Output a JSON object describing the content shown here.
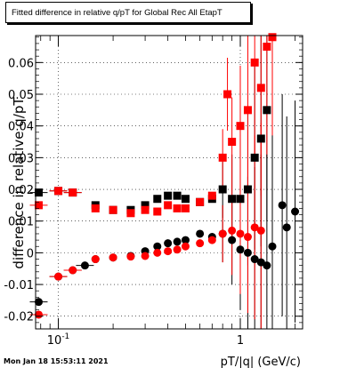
{
  "title": "Fitted difference in relative q/pT for Global Rec All EtapT",
  "date": "Mon Jan 18 15:53:11 2021",
  "chart_data": {
    "type": "scatter",
    "title": "Fitted difference in relative q/pT for Global Rec All EtapT",
    "xlabel": "pT/|q| (GeV/c)",
    "ylabel": "difference in relative q/pT",
    "xscale": "log",
    "xlim": [
      0.075,
      2.2
    ],
    "ylim": [
      -0.024,
      0.0685
    ],
    "xticks": [
      {
        "value": 0.1,
        "label": "10^-1"
      },
      {
        "value": 1,
        "label": "1"
      }
    ],
    "yticks": [
      -0.02,
      -0.01,
      0,
      0.01,
      0.02,
      0.03,
      0.04,
      0.05,
      0.06
    ],
    "ytick_labels": [
      "-0.02",
      "-0.01",
      "0",
      "0.01",
      "0.02",
      "0.03",
      "0.04",
      "0.05",
      "0.06"
    ],
    "grid": true,
    "series": [
      {
        "color": "#000000",
        "marker": "square",
        "x": [
          0.078,
          0.1,
          0.12,
          0.16,
          0.2,
          0.25,
          0.3,
          0.35,
          0.4,
          0.45,
          0.5,
          0.6,
          0.7,
          0.8,
          0.9,
          1.0,
          1.1,
          1.2,
          1.3,
          1.4
        ],
        "y": [
          0.019,
          0.0195,
          0.019,
          0.015,
          0.0135,
          0.0135,
          0.015,
          0.017,
          0.018,
          0.018,
          0.017,
          0.016,
          0.017,
          0.02,
          0.017,
          0.017,
          0.02,
          0.03,
          0.036,
          0.045
        ]
      },
      {
        "color": "#ff0000",
        "marker": "square",
        "x": [
          0.078,
          0.1,
          0.12,
          0.16,
          0.2,
          0.25,
          0.3,
          0.35,
          0.4,
          0.45,
          0.5,
          0.6,
          0.7,
          0.8,
          0.85,
          0.9,
          1.0,
          1.1,
          1.2,
          1.3,
          1.4,
          1.5
        ],
        "y": [
          0.015,
          0.0195,
          0.019,
          0.014,
          0.0135,
          0.0125,
          0.0135,
          0.013,
          0.015,
          0.014,
          0.014,
          0.016,
          0.018,
          0.03,
          0.05,
          0.035,
          0.04,
          0.045,
          0.06,
          0.052,
          0.065,
          0.068
        ]
      },
      {
        "color": "#000000",
        "marker": "circle",
        "x": [
          0.078,
          0.1,
          0.12,
          0.14,
          0.16,
          0.2,
          0.25,
          0.3,
          0.35,
          0.4,
          0.45,
          0.5,
          0.6,
          0.7,
          0.8,
          0.9,
          1.0,
          1.1,
          1.2,
          1.3,
          1.4,
          1.5,
          1.7,
          1.8,
          2.0
        ],
        "y": [
          -0.0155,
          -0.0075,
          -0.0055,
          -0.004,
          -0.002,
          -0.0015,
          -0.001,
          0.0005,
          0.002,
          0.003,
          0.0035,
          0.004,
          0.006,
          0.005,
          0.006,
          0.004,
          0.001,
          0.0,
          -0.002,
          -0.003,
          -0.004,
          0.002,
          0.015,
          0.008,
          0.013
        ]
      },
      {
        "color": "#ff0000",
        "marker": "circle",
        "x": [
          0.078,
          0.1,
          0.12,
          0.16,
          0.2,
          0.25,
          0.3,
          0.35,
          0.4,
          0.45,
          0.5,
          0.6,
          0.7,
          0.8,
          0.9,
          1.0,
          1.1,
          1.2,
          1.3
        ],
        "y": [
          -0.0195,
          -0.0075,
          -0.0055,
          -0.002,
          -0.0015,
          -0.0012,
          -0.001,
          0.0,
          0.0005,
          0.001,
          0.002,
          0.003,
          0.004,
          0.006,
          0.007,
          0.006,
          0.005,
          0.008,
          0.007
        ]
      }
    ]
  }
}
